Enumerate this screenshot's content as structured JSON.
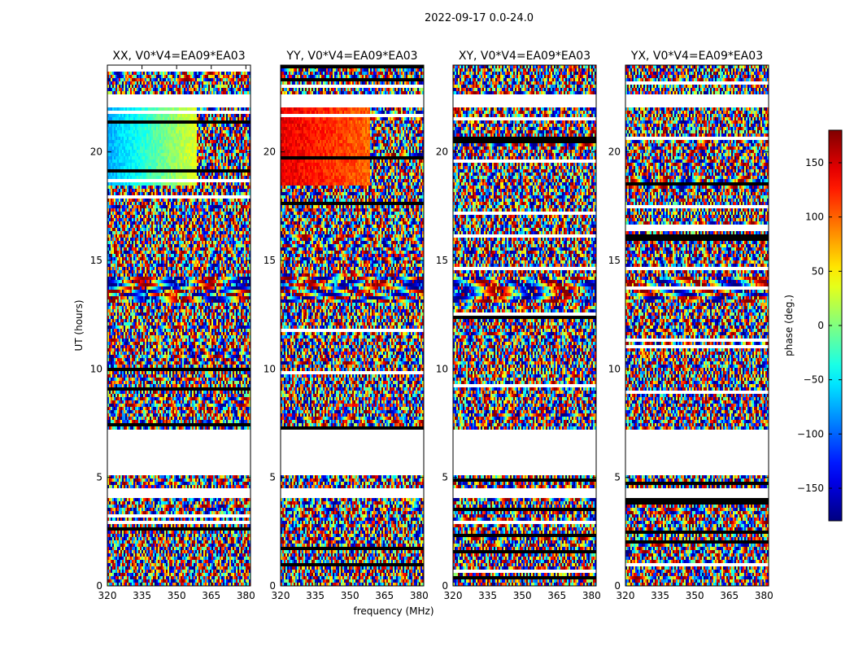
{
  "figure": {
    "suptitle": "2022-09-17 0.0-24.0"
  },
  "chart_data": {
    "type": "heatmap",
    "title": "2022-09-17 0.0-24.0",
    "xlabel": "frequency (MHz)",
    "ylabel": "UT (hours)",
    "xlim": [
      320,
      382
    ],
    "ylim": [
      0,
      24
    ],
    "xticks": [
      320,
      335,
      350,
      365,
      380
    ],
    "yticks": [
      0,
      5,
      10,
      15,
      20
    ],
    "colormap": "jet",
    "colorbar": {
      "label": "phase (deg.)",
      "range": [
        -180,
        180
      ],
      "ticks": [
        -150,
        -100,
        -50,
        0,
        50,
        100,
        150
      ],
      "tick_labels": [
        "−150",
        "−100",
        "−50",
        "0",
        "50",
        "100",
        "150"
      ]
    },
    "blank_intervals_hours": [
      [
        4.05,
        4.45
      ],
      [
        5.05,
        7.25
      ],
      [
        22.05,
        22.65
      ]
    ],
    "panels": [
      {
        "title": "XX, V0*V4=EA09*EA03",
        "polarization": "XX",
        "baseline": "V0*V4=EA09*EA03"
      },
      {
        "title": "YY, V0*V4=EA09*EA03",
        "polarization": "YY",
        "baseline": "V0*V4=EA09*EA03"
      },
      {
        "title": "XY, V0*V4=EA09*EA03",
        "polarization": "XY",
        "baseline": "V0*V4=EA09*EA03"
      },
      {
        "title": "YX, V0*V4=EA09*EA03",
        "polarization": "YX",
        "baseline": "V0*V4=EA09*EA03"
      }
    ]
  }
}
